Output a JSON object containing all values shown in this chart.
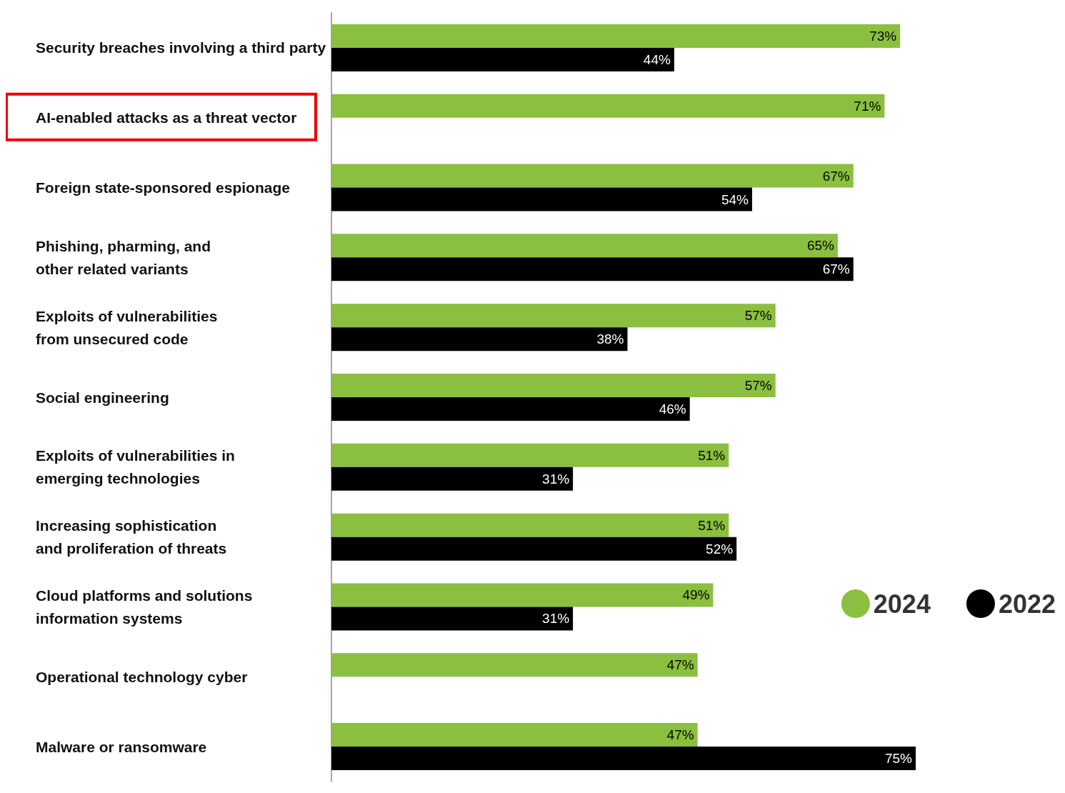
{
  "chart_data": {
    "type": "bar",
    "orientation": "horizontal",
    "categories": [
      "Security breaches involving a third party",
      "AI-enabled attacks as a threat vector",
      "Foreign state-sponsored espionage",
      "Phishing, pharming, and\nother related variants",
      "Exploits of vulnerabilities\nfrom unsecured code",
      "Social engineering",
      "Exploits of vulnerabilities in\nemerging technologies",
      "Increasing sophistication\nand proliferation of threats",
      "Cloud platforms and solutions\ninformation systems",
      "Operational technology cyber",
      "Malware or ransomware"
    ],
    "series": [
      {
        "name": "2024",
        "color": "#8bbf3f",
        "values": [
          73,
          71,
          67,
          65,
          57,
          57,
          51,
          51,
          49,
          47,
          47
        ],
        "value_labels": [
          "73%",
          "71%",
          "67%",
          "65%",
          "57%",
          "57%",
          "51%",
          "51%",
          "49%",
          "47%",
          "47%"
        ]
      },
      {
        "name": "2022",
        "color": "#000000",
        "values": [
          44,
          null,
          54,
          67,
          38,
          46,
          31,
          52,
          31,
          null,
          75
        ],
        "value_labels": [
          "44%",
          null,
          "54%",
          "67%",
          "38%",
          "46%",
          "31%",
          "52%",
          "31%",
          null,
          "75%"
        ]
      }
    ],
    "legend": "right",
    "grid": false
  }
}
